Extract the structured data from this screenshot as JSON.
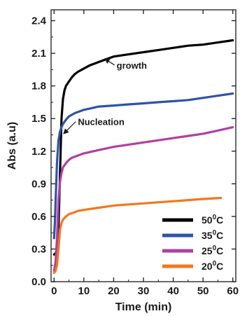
{
  "chart_data": {
    "type": "line",
    "xlabel": "Time (min)",
    "ylabel": "Abs (a.u)",
    "xlim": [
      -1,
      61
    ],
    "ylim": [
      0.0,
      2.5
    ],
    "xticks": [
      0,
      10,
      20,
      30,
      40,
      50,
      60
    ],
    "xtick_labels": [
      "0",
      "10",
      "20",
      "30",
      "40",
      "50",
      "60"
    ],
    "yticks": [
      0.0,
      0.3,
      0.6,
      0.9,
      1.2,
      1.5,
      1.8,
      2.1,
      2.4
    ],
    "ytick_labels": [
      "0.0",
      "0.3",
      "0.6",
      "0.9",
      "1.2",
      "1.5",
      "1.8",
      "2.1",
      "2.4"
    ],
    "grid": false,
    "legend_position": "bottom-right",
    "series": [
      {
        "name": "50°C",
        "legend_base": "50",
        "legend_sup": "0",
        "legend_unit": "C",
        "color": "#000000",
        "x": [
          0,
          0.5,
          1,
          1.5,
          2,
          2.5,
          3,
          3.5,
          4,
          5,
          6,
          7,
          8,
          10,
          12,
          15,
          18,
          20,
          25,
          30,
          35,
          40,
          45,
          50,
          55,
          60
        ],
        "y": [
          0.25,
          0.26,
          0.3,
          0.5,
          1.0,
          1.5,
          1.68,
          1.76,
          1.8,
          1.84,
          1.88,
          1.91,
          1.93,
          1.96,
          1.99,
          2.02,
          2.05,
          2.07,
          2.09,
          2.11,
          2.13,
          2.15,
          2.17,
          2.18,
          2.2,
          2.22
        ]
      },
      {
        "name": "35°C",
        "legend_base": "35",
        "legend_sup": "0",
        "legend_unit": "C",
        "color": "#2f53a8",
        "x": [
          0,
          0.3,
          0.6,
          1,
          1.5,
          2,
          2.5,
          3,
          4,
          5,
          7,
          10,
          15,
          20,
          25,
          30,
          35,
          40,
          45,
          50,
          55,
          60
        ],
        "y": [
          0.4,
          0.55,
          0.8,
          1.1,
          1.3,
          1.38,
          1.42,
          1.45,
          1.49,
          1.52,
          1.55,
          1.58,
          1.61,
          1.62,
          1.63,
          1.64,
          1.65,
          1.66,
          1.67,
          1.69,
          1.71,
          1.73
        ]
      },
      {
        "name": "25°C",
        "legend_base": "25",
        "legend_sup": "0",
        "legend_unit": "C",
        "color": "#b040a0",
        "x": [
          0,
          0.5,
          1,
          1.5,
          2,
          2.5,
          3,
          4,
          5,
          6,
          8,
          10,
          15,
          20,
          25,
          30,
          35,
          40,
          45,
          50,
          55,
          60
        ],
        "y": [
          0.1,
          0.18,
          0.4,
          0.75,
          0.92,
          1.0,
          1.05,
          1.09,
          1.12,
          1.14,
          1.16,
          1.18,
          1.21,
          1.24,
          1.26,
          1.28,
          1.3,
          1.32,
          1.34,
          1.36,
          1.39,
          1.42
        ]
      },
      {
        "name": "20°C",
        "legend_base": "20",
        "legend_sup": "0",
        "legend_unit": "C",
        "color": "#f07820",
        "x": [
          0,
          0.5,
          1,
          1.5,
          2,
          2.5,
          3,
          4,
          5,
          6,
          7,
          8,
          10,
          15,
          20,
          25,
          30,
          35,
          40,
          45,
          50,
          56
        ],
        "y": [
          0.08,
          0.1,
          0.15,
          0.3,
          0.48,
          0.54,
          0.57,
          0.6,
          0.62,
          0.63,
          0.64,
          0.65,
          0.66,
          0.68,
          0.7,
          0.71,
          0.72,
          0.73,
          0.74,
          0.75,
          0.76,
          0.77
        ]
      }
    ],
    "annotations": [
      {
        "text": "growth",
        "text_x": 21,
        "text_y": 1.96,
        "arrow_x": 17,
        "arrow_y": 2.05
      },
      {
        "text": "Nucleation",
        "text_x": 8,
        "text_y": 1.44,
        "arrow_x": 3.2,
        "arrow_y": 1.36
      }
    ]
  }
}
